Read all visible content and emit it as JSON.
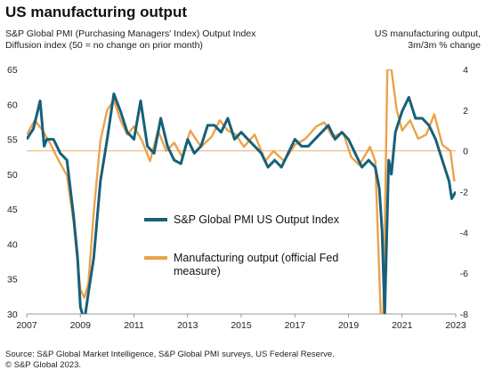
{
  "title": "US manufacturing output",
  "subtitle_left": [
    "S&P Global PMI (Purchasing Managers' Index) Output Index",
    "Diffusion index (50 = no change on prior month)"
  ],
  "subtitle_right": [
    "US manufacturing output,",
    "3m/3m % change"
  ],
  "footer": [
    "Source: S&P Global Market Intelligence, S&P Global PMI surveys, US Federal Reserve.",
    "© S&P Global 2023."
  ],
  "colors": {
    "pmi": "#16607a",
    "output": "#eba24c",
    "zero_line": "#e9b06a",
    "axis": "#999999"
  },
  "chart_data": {
    "type": "line",
    "x_ticks": [
      "2007",
      "2009",
      "2011",
      "2013",
      "2015",
      "2017",
      "2019",
      "2021",
      "2023"
    ],
    "x_range": [
      2007,
      2023
    ],
    "y_left": {
      "ticks": [
        "65",
        "60",
        "55",
        "50",
        "45",
        "40",
        "35",
        "30"
      ],
      "range": [
        30,
        65
      ]
    },
    "y_right": {
      "ticks": [
        "4",
        "2",
        "0",
        "-2",
        "-4",
        "-6",
        "-8"
      ],
      "range": [
        -8,
        4
      ]
    },
    "legend": {
      "placement": "center",
      "entries": [
        "S&P Global PMI US Output Index",
        "Manufacturing output (official Fed measure)"
      ]
    },
    "series": [
      {
        "name": "S&P Global PMI US Output Index",
        "axis": "left",
        "x": [
          2007.0,
          2007.25,
          2007.5,
          2007.65,
          2007.75,
          2008.0,
          2008.25,
          2008.5,
          2008.75,
          2008.9,
          2009.0,
          2009.15,
          2009.3,
          2009.5,
          2009.75,
          2010.0,
          2010.25,
          2010.5,
          2010.75,
          2011.0,
          2011.25,
          2011.5,
          2011.75,
          2012.0,
          2012.25,
          2012.5,
          2012.75,
          2013.0,
          2013.25,
          2013.5,
          2013.75,
          2014.0,
          2014.25,
          2014.5,
          2014.75,
          2015.0,
          2015.25,
          2015.5,
          2015.75,
          2016.0,
          2016.25,
          2016.5,
          2016.75,
          2017.0,
          2017.25,
          2017.5,
          2017.75,
          2018.0,
          2018.25,
          2018.5,
          2018.75,
          2019.0,
          2019.25,
          2019.5,
          2019.75,
          2020.0,
          2020.15,
          2020.25,
          2020.35,
          2020.5,
          2020.6,
          2020.75,
          2021.0,
          2021.25,
          2021.5,
          2021.75,
          2022.0,
          2022.25,
          2022.5,
          2022.75,
          2022.85,
          2023.0
        ],
        "values": [
          55,
          56.5,
          60.5,
          54,
          55,
          55,
          53,
          52,
          44,
          38,
          31,
          29,
          33,
          38,
          49,
          55,
          61.5,
          59,
          56,
          55,
          60.5,
          54,
          53,
          58,
          54,
          52,
          51.5,
          55,
          53,
          54,
          57,
          57,
          56,
          58,
          55,
          56,
          55,
          54,
          53,
          51,
          52,
          51,
          53,
          55,
          54,
          54,
          55,
          56,
          57,
          55,
          56,
          55,
          53,
          51,
          52,
          51,
          48,
          42,
          30,
          52,
          50,
          56,
          59,
          61,
          58,
          58,
          57,
          55,
          52,
          49,
          46.5,
          47.5
        ]
      },
      {
        "name": "Manufacturing output (official Fed measure)",
        "axis": "right",
        "x": [
          2007.0,
          2007.3,
          2007.6,
          2007.9,
          2008.2,
          2008.5,
          2008.75,
          2008.9,
          2009.0,
          2009.15,
          2009.3,
          2009.5,
          2009.75,
          2010.0,
          2010.25,
          2010.5,
          2010.75,
          2011.0,
          2011.3,
          2011.6,
          2011.9,
          2012.2,
          2012.5,
          2012.8,
          2013.1,
          2013.5,
          2013.9,
          2014.2,
          2014.5,
          2014.8,
          2015.1,
          2015.5,
          2015.9,
          2016.2,
          2016.6,
          2017.0,
          2017.4,
          2017.8,
          2018.1,
          2018.4,
          2018.8,
          2019.1,
          2019.4,
          2019.8,
          2020.0,
          2020.2,
          2020.3,
          2020.45,
          2020.6,
          2020.8,
          2021.0,
          2021.3,
          2021.6,
          2021.9,
          2022.2,
          2022.5,
          2022.8,
          2022.95
        ],
        "values": [
          0.8,
          1.5,
          1.0,
          0.3,
          -0.5,
          -1.2,
          -3.5,
          -5.5,
          -6.8,
          -7.2,
          -6.5,
          -3.0,
          0.5,
          2.0,
          2.5,
          1.5,
          0.8,
          1.2,
          0.5,
          -0.5,
          1.0,
          0.0,
          0.4,
          -0.3,
          1.0,
          0.2,
          0.7,
          1.5,
          1.0,
          0.8,
          0.2,
          0.8,
          -0.5,
          0.0,
          -0.5,
          0.3,
          0.6,
          1.2,
          1.4,
          0.7,
          0.9,
          -0.3,
          -0.7,
          0.2,
          -0.5,
          -8,
          -8,
          4,
          4,
          2.0,
          1.0,
          1.5,
          0.6,
          0.8,
          1.8,
          0.3,
          0.0,
          -1.5
        ]
      }
    ]
  }
}
